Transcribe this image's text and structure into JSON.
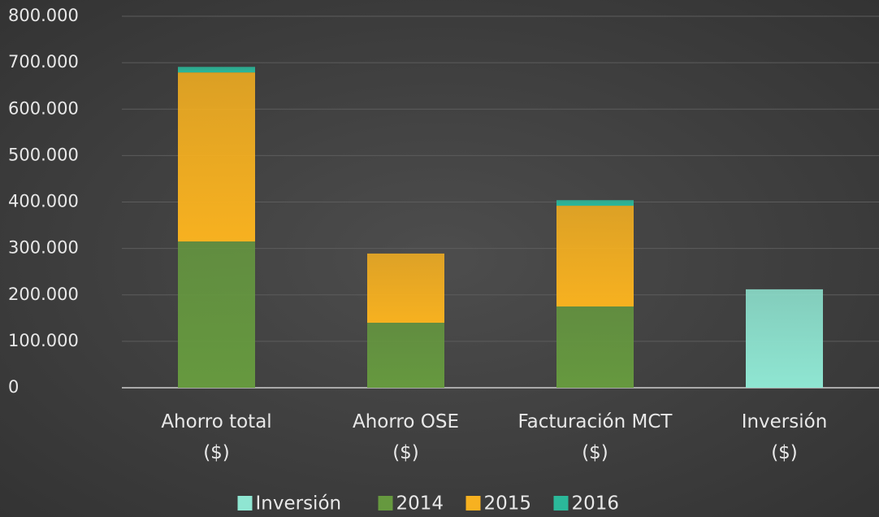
{
  "chart_data": {
    "type": "stacked_bar",
    "categories": [
      "Ahorro total\n($)",
      "Ahorro OSE\n($)",
      "Facturación MCT\n($)",
      "Inversión\n($)"
    ],
    "series": [
      {
        "name": "Inversión",
        "color": "#8fe6d2",
        "values": [
          null,
          null,
          null,
          212000
        ]
      },
      {
        "name": "2014",
        "color": "#66993f",
        "values": [
          315000,
          140000,
          175000,
          null
        ]
      },
      {
        "name": "2015",
        "color": "#f7b120",
        "values": [
          364000,
          149000,
          217000,
          null
        ]
      },
      {
        "name": "2016",
        "color": "#2bb89a",
        "values": [
          12000,
          null,
          12000,
          null
        ]
      }
    ],
    "ylim": [
      0,
      800000
    ],
    "yticks": [
      0,
      {
        "value": 100000,
        "label": "100.000"
      },
      {
        "value": 200000,
        "label": "200.000"
      },
      {
        "value": 300000,
        "label": "300.000"
      },
      {
        "value": 400000,
        "label": "400.000"
      },
      {
        "value": 500000,
        "label": "500.000"
      },
      {
        "value": 600000,
        "label": "600.000"
      },
      {
        "value": 700000,
        "label": "700.000"
      },
      {
        "value": 800000,
        "label": "800.000"
      }
    ],
    "grid": true,
    "legend": "bottom"
  }
}
